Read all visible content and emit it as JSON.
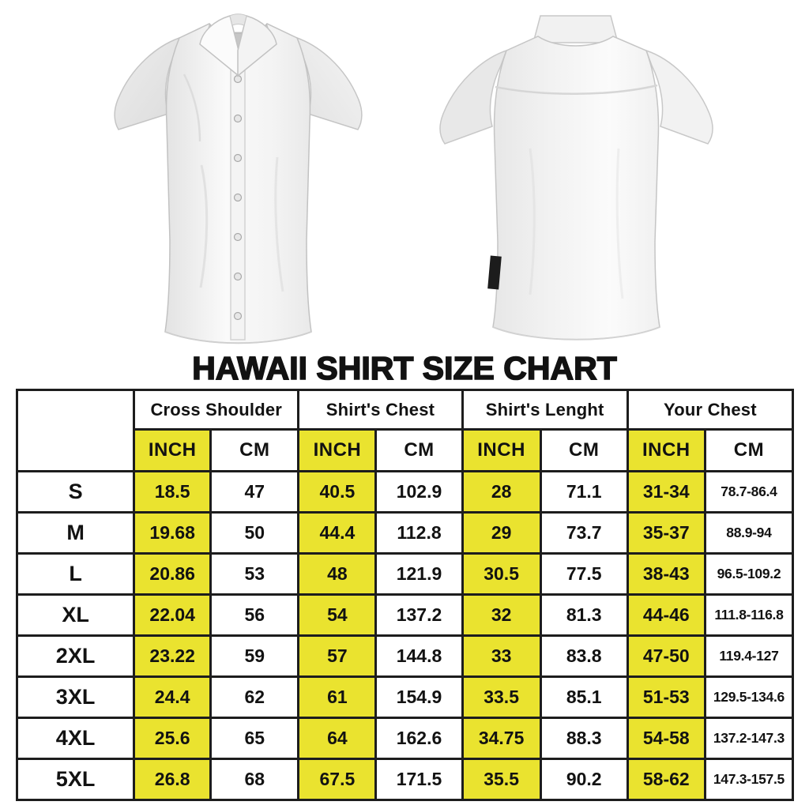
{
  "title": "HAWAII SHIRT SIZE CHART",
  "images": {
    "front_shirt": "white short-sleeve button-up shirt, front view",
    "back_shirt": "white short-sleeve button-up shirt, back view"
  },
  "size_chart": {
    "highlight_color": "#EAE32F",
    "border_color": "#1d1d1d",
    "unit_labels": {
      "inch": "INCH",
      "cm": "CM"
    },
    "column_groups": [
      {
        "label": "Cross Shoulder"
      },
      {
        "label": "Shirt's Chest"
      },
      {
        "label": "Shirt's Lenght"
      },
      {
        "label": "Your Chest"
      }
    ],
    "rows": [
      {
        "size": "S",
        "cells": [
          "18.5",
          "47",
          "40.5",
          "102.9",
          "28",
          "71.1",
          "31-34",
          "78.7-86.4"
        ]
      },
      {
        "size": "M",
        "cells": [
          "19.68",
          "50",
          "44.4",
          "112.8",
          "29",
          "73.7",
          "35-37",
          "88.9-94"
        ]
      },
      {
        "size": "L",
        "cells": [
          "20.86",
          "53",
          "48",
          "121.9",
          "30.5",
          "77.5",
          "38-43",
          "96.5-109.2"
        ]
      },
      {
        "size": "XL",
        "cells": [
          "22.04",
          "56",
          "54",
          "137.2",
          "32",
          "81.3",
          "44-46",
          "111.8-116.8"
        ]
      },
      {
        "size": "2XL",
        "cells": [
          "23.22",
          "59",
          "57",
          "144.8",
          "33",
          "83.8",
          "47-50",
          "119.4-127"
        ]
      },
      {
        "size": "3XL",
        "cells": [
          "24.4",
          "62",
          "61",
          "154.9",
          "33.5",
          "85.1",
          "51-53",
          "129.5-134.6"
        ]
      },
      {
        "size": "4XL",
        "cells": [
          "25.6",
          "65",
          "64",
          "162.6",
          "34.75",
          "88.3",
          "54-58",
          "137.2-147.3"
        ]
      },
      {
        "size": "5XL",
        "cells": [
          "26.8",
          "68",
          "67.5",
          "171.5",
          "35.5",
          "90.2",
          "58-62",
          "147.3-157.5"
        ]
      }
    ]
  }
}
